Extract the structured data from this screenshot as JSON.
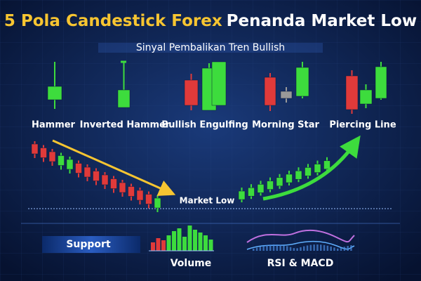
{
  "header": {
    "title_highlight": "5 Pola Candestick Forex",
    "title_rest": "Penanda Market Low",
    "subtitle": "Sinyal Pembalikan Tren Bullish"
  },
  "patterns": [
    {
      "label": "Hammer"
    },
    {
      "label": "Inverted Hammer"
    },
    {
      "label": "Bullish Engulfing"
    },
    {
      "label": "Morning Star"
    },
    {
      "label": "Piercing Line"
    }
  ],
  "chart": {
    "annotation": "Market Low"
  },
  "footer": {
    "support": "Support",
    "volume": "Volume",
    "indicators": "RSI & MACD"
  }
}
